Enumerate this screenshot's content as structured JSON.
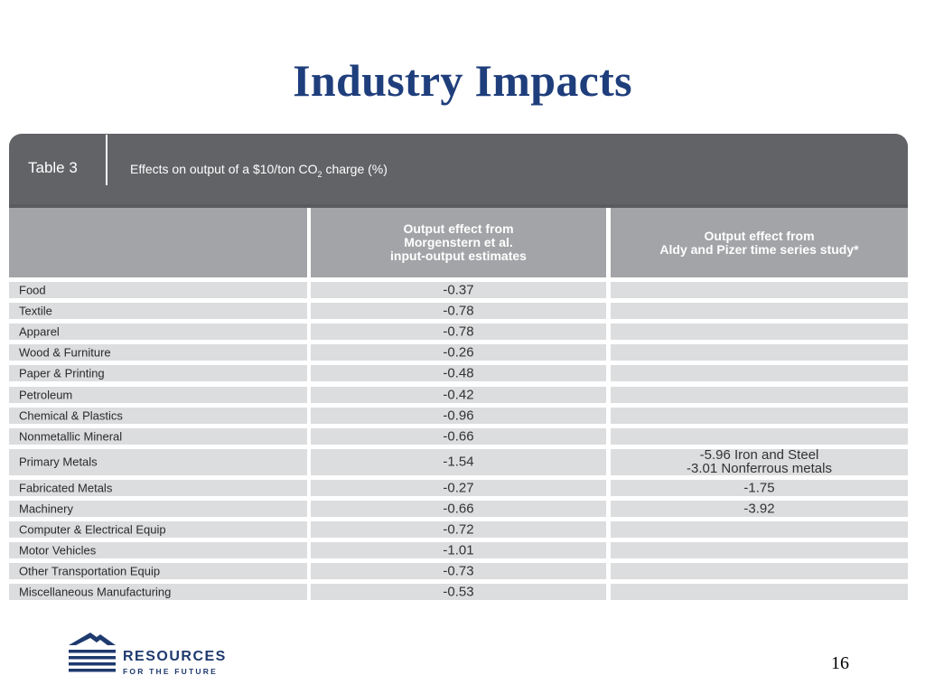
{
  "slide": {
    "title": "Industry Impacts",
    "page_number": "16"
  },
  "table": {
    "number": "Table 3",
    "caption_pre": "Effects on output of a $10/ton CO",
    "caption_sub": "2",
    "caption_post": " charge (%)",
    "columns": [
      {
        "lines": [
          ""
        ]
      },
      {
        "lines": [
          "Output effect from",
          "Morgenstern et al.",
          "input-output estimates"
        ]
      },
      {
        "lines": [
          "Output effect from",
          "Aldy and Pizer time series study*"
        ]
      }
    ],
    "rows": [
      {
        "industry": "Food",
        "morgenstern": "-0.37",
        "aldy_pizer": []
      },
      {
        "industry": "Textile",
        "morgenstern": "-0.78",
        "aldy_pizer": []
      },
      {
        "industry": "Apparel",
        "morgenstern": "-0.78",
        "aldy_pizer": []
      },
      {
        "industry": "Wood & Furniture",
        "morgenstern": "-0.26",
        "aldy_pizer": []
      },
      {
        "industry": "Paper & Printing",
        "morgenstern": "-0.48",
        "aldy_pizer": []
      },
      {
        "industry": "Petroleum",
        "morgenstern": "-0.42",
        "aldy_pizer": []
      },
      {
        "industry": "Chemical & Plastics",
        "morgenstern": "-0.96",
        "aldy_pizer": []
      },
      {
        "industry": "Nonmetallic Mineral",
        "morgenstern": "-0.66",
        "aldy_pizer": []
      },
      {
        "industry": "Primary Metals",
        "morgenstern": "-1.54",
        "aldy_pizer": [
          "-5.96 Iron and Steel",
          "-3.01 Nonferrous metals"
        ]
      },
      {
        "industry": "Fabricated Metals",
        "morgenstern": "-0.27",
        "aldy_pizer": [
          "-1.75"
        ]
      },
      {
        "industry": "Machinery",
        "morgenstern": "-0.66",
        "aldy_pizer": [
          "-3.92"
        ]
      },
      {
        "industry": "Computer & Electrical Equip",
        "morgenstern": "-0.72",
        "aldy_pizer": []
      },
      {
        "industry": "Motor Vehicles",
        "morgenstern": "-1.01",
        "aldy_pizer": []
      },
      {
        "industry": "Other Transportation Equip",
        "morgenstern": "-0.73",
        "aldy_pizer": []
      },
      {
        "industry": "Miscellaneous Manufacturing",
        "morgenstern": "-0.53",
        "aldy_pizer": []
      }
    ]
  },
  "logo": {
    "line1": "RESOURCES",
    "line2": "FOR THE FUTURE",
    "icon": "mountain-waves-logo-icon"
  },
  "colors": {
    "title": "#1f3e7c",
    "header_bar": "#626366",
    "column_header": "#a3a4a7",
    "cell": "#dcdddf",
    "logo": "#1e3a6e"
  }
}
